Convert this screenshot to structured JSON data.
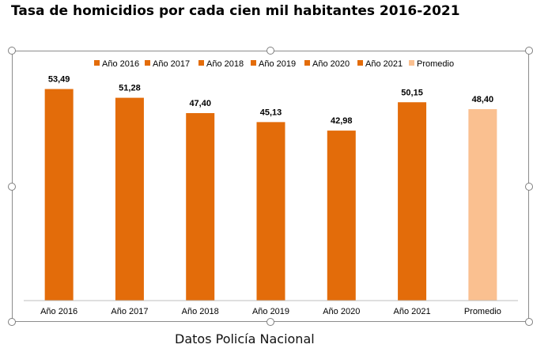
{
  "title": "Tasa de homicidios por cada cien mil habitantes 2016-2021",
  "source": "Datos Policía Nacional",
  "chart_data": {
    "type": "bar",
    "categories": [
      "Año 2016",
      "Año 2017",
      "Año 2018",
      "Año 2019",
      "Año 2020",
      "Año 2021",
      "Promedio"
    ],
    "values": [
      53.49,
      51.28,
      47.4,
      45.13,
      42.98,
      50.15,
      48.4
    ],
    "value_labels": [
      "53,49",
      "51,28",
      "47,40",
      "45,13",
      "42,98",
      "50,15",
      "48,40"
    ],
    "legend": [
      "Año 2016",
      "Año 2017",
      "Año 2018",
      "Año 2019",
      "Año 2020",
      "Año 2021",
      "Promedio"
    ],
    "legend_position": "top",
    "colors": [
      "#E36C0A",
      "#E36C0A",
      "#E36C0A",
      "#E36C0A",
      "#E36C0A",
      "#E36C0A",
      "#FAC090"
    ],
    "ylim": [
      0,
      60
    ],
    "grid": false,
    "xlabel": "",
    "ylabel": ""
  }
}
